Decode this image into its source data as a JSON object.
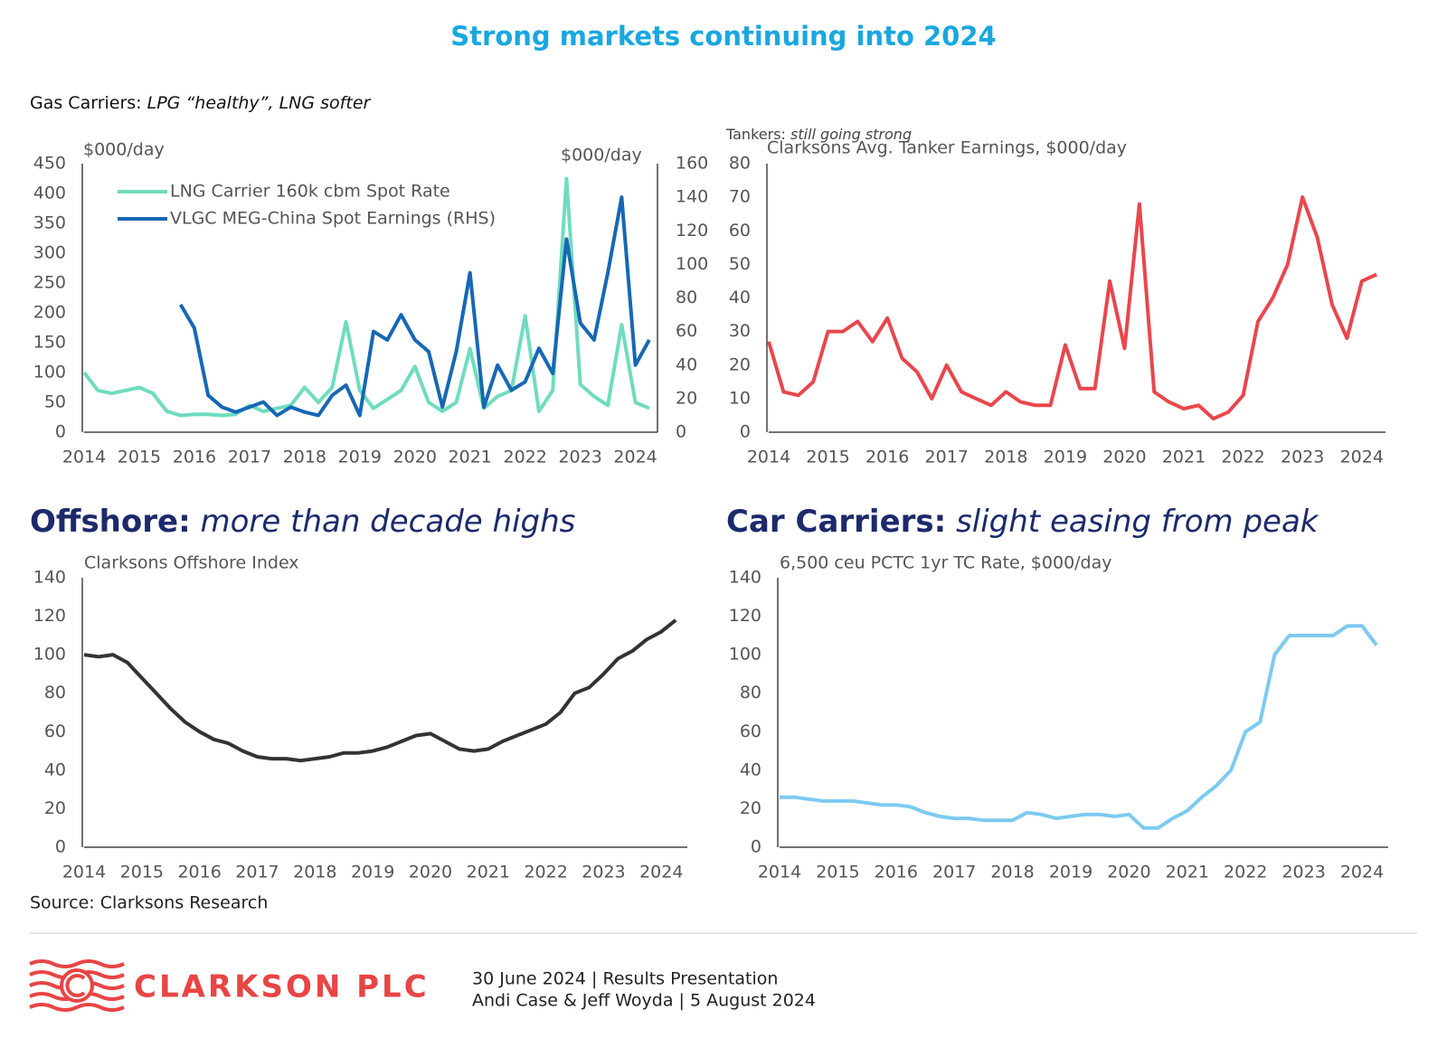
{
  "page_title": "Strong markets continuing into 2024",
  "footer": {
    "source": "Source: Clarksons Research",
    "logo": "CLARKSON PLC",
    "line1": "30 June 2024 | Results Presentation",
    "line2": "Andi Case & Jeff Woyda | 5 August 2024"
  },
  "chart_data": [
    {
      "type": "line",
      "title": "Gas Carriers:",
      "subtitle": "LPG “healthy”, LNG softer",
      "y_label": "$000/day",
      "y2_label": "$000/day",
      "legend": "upper left",
      "grid": false,
      "x": [
        2014,
        2014.25,
        2014.5,
        2014.75,
        2015,
        2015.25,
        2015.5,
        2015.75,
        2016,
        2016.25,
        2016.5,
        2016.75,
        2017,
        2017.25,
        2017.5,
        2017.75,
        2018,
        2018.25,
        2018.5,
        2018.75,
        2019,
        2019.25,
        2019.5,
        2019.75,
        2020,
        2020.25,
        2020.5,
        2020.75,
        2021,
        2021.25,
        2021.5,
        2021.75,
        2022,
        2022.25,
        2022.5,
        2022.75,
        2023,
        2023.25,
        2023.5,
        2023.75,
        2024,
        2024.25
      ],
      "xlim": [
        2014,
        2024.4
      ],
      "xticks": [
        2014,
        2015,
        2016,
        2017,
        2018,
        2019,
        2020,
        2021,
        2022,
        2023,
        2024
      ],
      "ylim": [
        0,
        450
      ],
      "yticks": [
        0,
        50,
        100,
        150,
        200,
        250,
        300,
        350,
        400,
        450
      ],
      "y2lim": [
        0,
        160
      ],
      "y2ticks": [
        0,
        20,
        40,
        60,
        80,
        100,
        120,
        140,
        160
      ],
      "series": [
        {
          "name": "LNG Carrier 160k cbm Spot Rate",
          "color": "#6fdcbe",
          "values": [
            100,
            70,
            65,
            70,
            75,
            65,
            35,
            28,
            30,
            30,
            28,
            30,
            45,
            35,
            40,
            45,
            75,
            50,
            75,
            185,
            70,
            40,
            55,
            70,
            110,
            50,
            35,
            50,
            140,
            40,
            60,
            70,
            195,
            35,
            70,
            425,
            80,
            60,
            45,
            180,
            50,
            40
          ]
        },
        {
          "name": "VLGC MEG-China Spot Earnings (RHS)",
          "color": "#1668b4",
          "axis": "y2",
          "values": [
            null,
            null,
            null,
            null,
            null,
            null,
            null,
            76,
            62,
            22,
            15,
            12,
            15,
            18,
            10,
            15,
            12,
            10,
            22,
            28,
            10,
            60,
            55,
            70,
            55,
            48,
            15,
            48,
            95,
            15,
            40,
            25,
            30,
            50,
            35,
            115,
            65,
            55,
            95,
            140,
            40,
            55
          ]
        }
      ]
    },
    {
      "type": "line",
      "title": "Tankers:",
      "subtitle": "still going strong",
      "y_label": "Clarksons Avg. Tanker Earnings, $000/day",
      "grid": false,
      "color": "#e8474c",
      "x": [
        2014,
        2014.25,
        2014.5,
        2014.75,
        2015,
        2015.25,
        2015.5,
        2015.75,
        2016,
        2016.25,
        2016.5,
        2016.75,
        2017,
        2017.25,
        2017.5,
        2017.75,
        2018,
        2018.25,
        2018.5,
        2018.75,
        2019,
        2019.25,
        2019.5,
        2019.75,
        2020,
        2020.25,
        2020.5,
        2020.75,
        2021,
        2021.25,
        2021.5,
        2021.75,
        2022,
        2022.25,
        2022.5,
        2022.75,
        2023,
        2023.25,
        2023.5,
        2023.75,
        2024,
        2024.25
      ],
      "xlim": [
        2014,
        2024.4
      ],
      "xticks": [
        2014,
        2015,
        2016,
        2017,
        2018,
        2019,
        2020,
        2021,
        2022,
        2023,
        2024
      ],
      "ylim": [
        0,
        80
      ],
      "yticks": [
        0,
        10,
        20,
        30,
        40,
        50,
        60,
        70,
        80
      ],
      "values": [
        27,
        12,
        11,
        15,
        30,
        30,
        33,
        27,
        34,
        22,
        18,
        10,
        20,
        12,
        10,
        8,
        12,
        9,
        8,
        8,
        26,
        13,
        13,
        45,
        25,
        68,
        12,
        9,
        7,
        8,
        4,
        6,
        11,
        33,
        40,
        50,
        70,
        58,
        38,
        28,
        45,
        47
      ]
    },
    {
      "type": "line",
      "title": "Offshore:",
      "subtitle": "more than decade highs",
      "y_label": "Clarksons Offshore Index",
      "grid": false,
      "color": "#333333",
      "x": [
        2014,
        2014.25,
        2014.5,
        2014.75,
        2015,
        2015.25,
        2015.5,
        2015.75,
        2016,
        2016.25,
        2016.5,
        2016.75,
        2017,
        2017.25,
        2017.5,
        2017.75,
        2018,
        2018.25,
        2018.5,
        2018.75,
        2019,
        2019.25,
        2019.5,
        2019.75,
        2020,
        2020.25,
        2020.5,
        2020.75,
        2021,
        2021.25,
        2021.5,
        2021.75,
        2022,
        2022.25,
        2022.5,
        2022.75,
        2023,
        2023.25,
        2023.5,
        2023.75,
        2024,
        2024.25
      ],
      "xlim": [
        2014,
        2024.45
      ],
      "xticks": [
        2014,
        2015,
        2016,
        2017,
        2018,
        2019,
        2020,
        2021,
        2022,
        2023,
        2024
      ],
      "ylim": [
        0,
        140
      ],
      "yticks": [
        0,
        20,
        40,
        60,
        80,
        100,
        120,
        140
      ],
      "values": [
        100,
        99,
        100,
        96,
        88,
        80,
        72,
        65,
        60,
        56,
        54,
        50,
        47,
        46,
        46,
        45,
        46,
        47,
        49,
        49,
        50,
        52,
        55,
        58,
        59,
        55,
        51,
        50,
        51,
        55,
        58,
        61,
        64,
        70,
        80,
        83,
        90,
        98,
        102,
        108,
        112,
        118
      ]
    },
    {
      "type": "line",
      "title": "Car Carriers:",
      "subtitle": "slight easing from peak",
      "y_label": "6,500 ceu PCTC 1yr TC Rate, $000/day",
      "grid": false,
      "color": "#7ccaf0",
      "x": [
        2014,
        2014.25,
        2014.5,
        2014.75,
        2015,
        2015.25,
        2015.5,
        2015.75,
        2016,
        2016.25,
        2016.5,
        2016.75,
        2017,
        2017.25,
        2017.5,
        2017.75,
        2018,
        2018.25,
        2018.5,
        2018.75,
        2019,
        2019.25,
        2019.5,
        2019.75,
        2020,
        2020.25,
        2020.5,
        2020.75,
        2021,
        2021.25,
        2021.5,
        2021.75,
        2022,
        2022.25,
        2022.5,
        2022.75,
        2023,
        2023.25,
        2023.5,
        2023.75,
        2024,
        2024.25
      ],
      "xlim": [
        2014,
        2024.45
      ],
      "xticks": [
        2014,
        2015,
        2016,
        2017,
        2018,
        2019,
        2020,
        2021,
        2022,
        2023,
        2024
      ],
      "ylim": [
        0,
        140
      ],
      "yticks": [
        0,
        20,
        40,
        60,
        80,
        100,
        120,
        140
      ],
      "values": [
        26,
        26,
        25,
        24,
        24,
        24,
        23,
        22,
        22,
        21,
        18,
        16,
        15,
        15,
        14,
        14,
        14,
        18,
        17,
        15,
        16,
        17,
        17,
        16,
        17,
        10,
        10,
        15,
        19,
        26,
        32,
        40,
        60,
        65,
        100,
        110,
        110,
        110,
        110,
        115,
        115,
        105
      ]
    }
  ]
}
